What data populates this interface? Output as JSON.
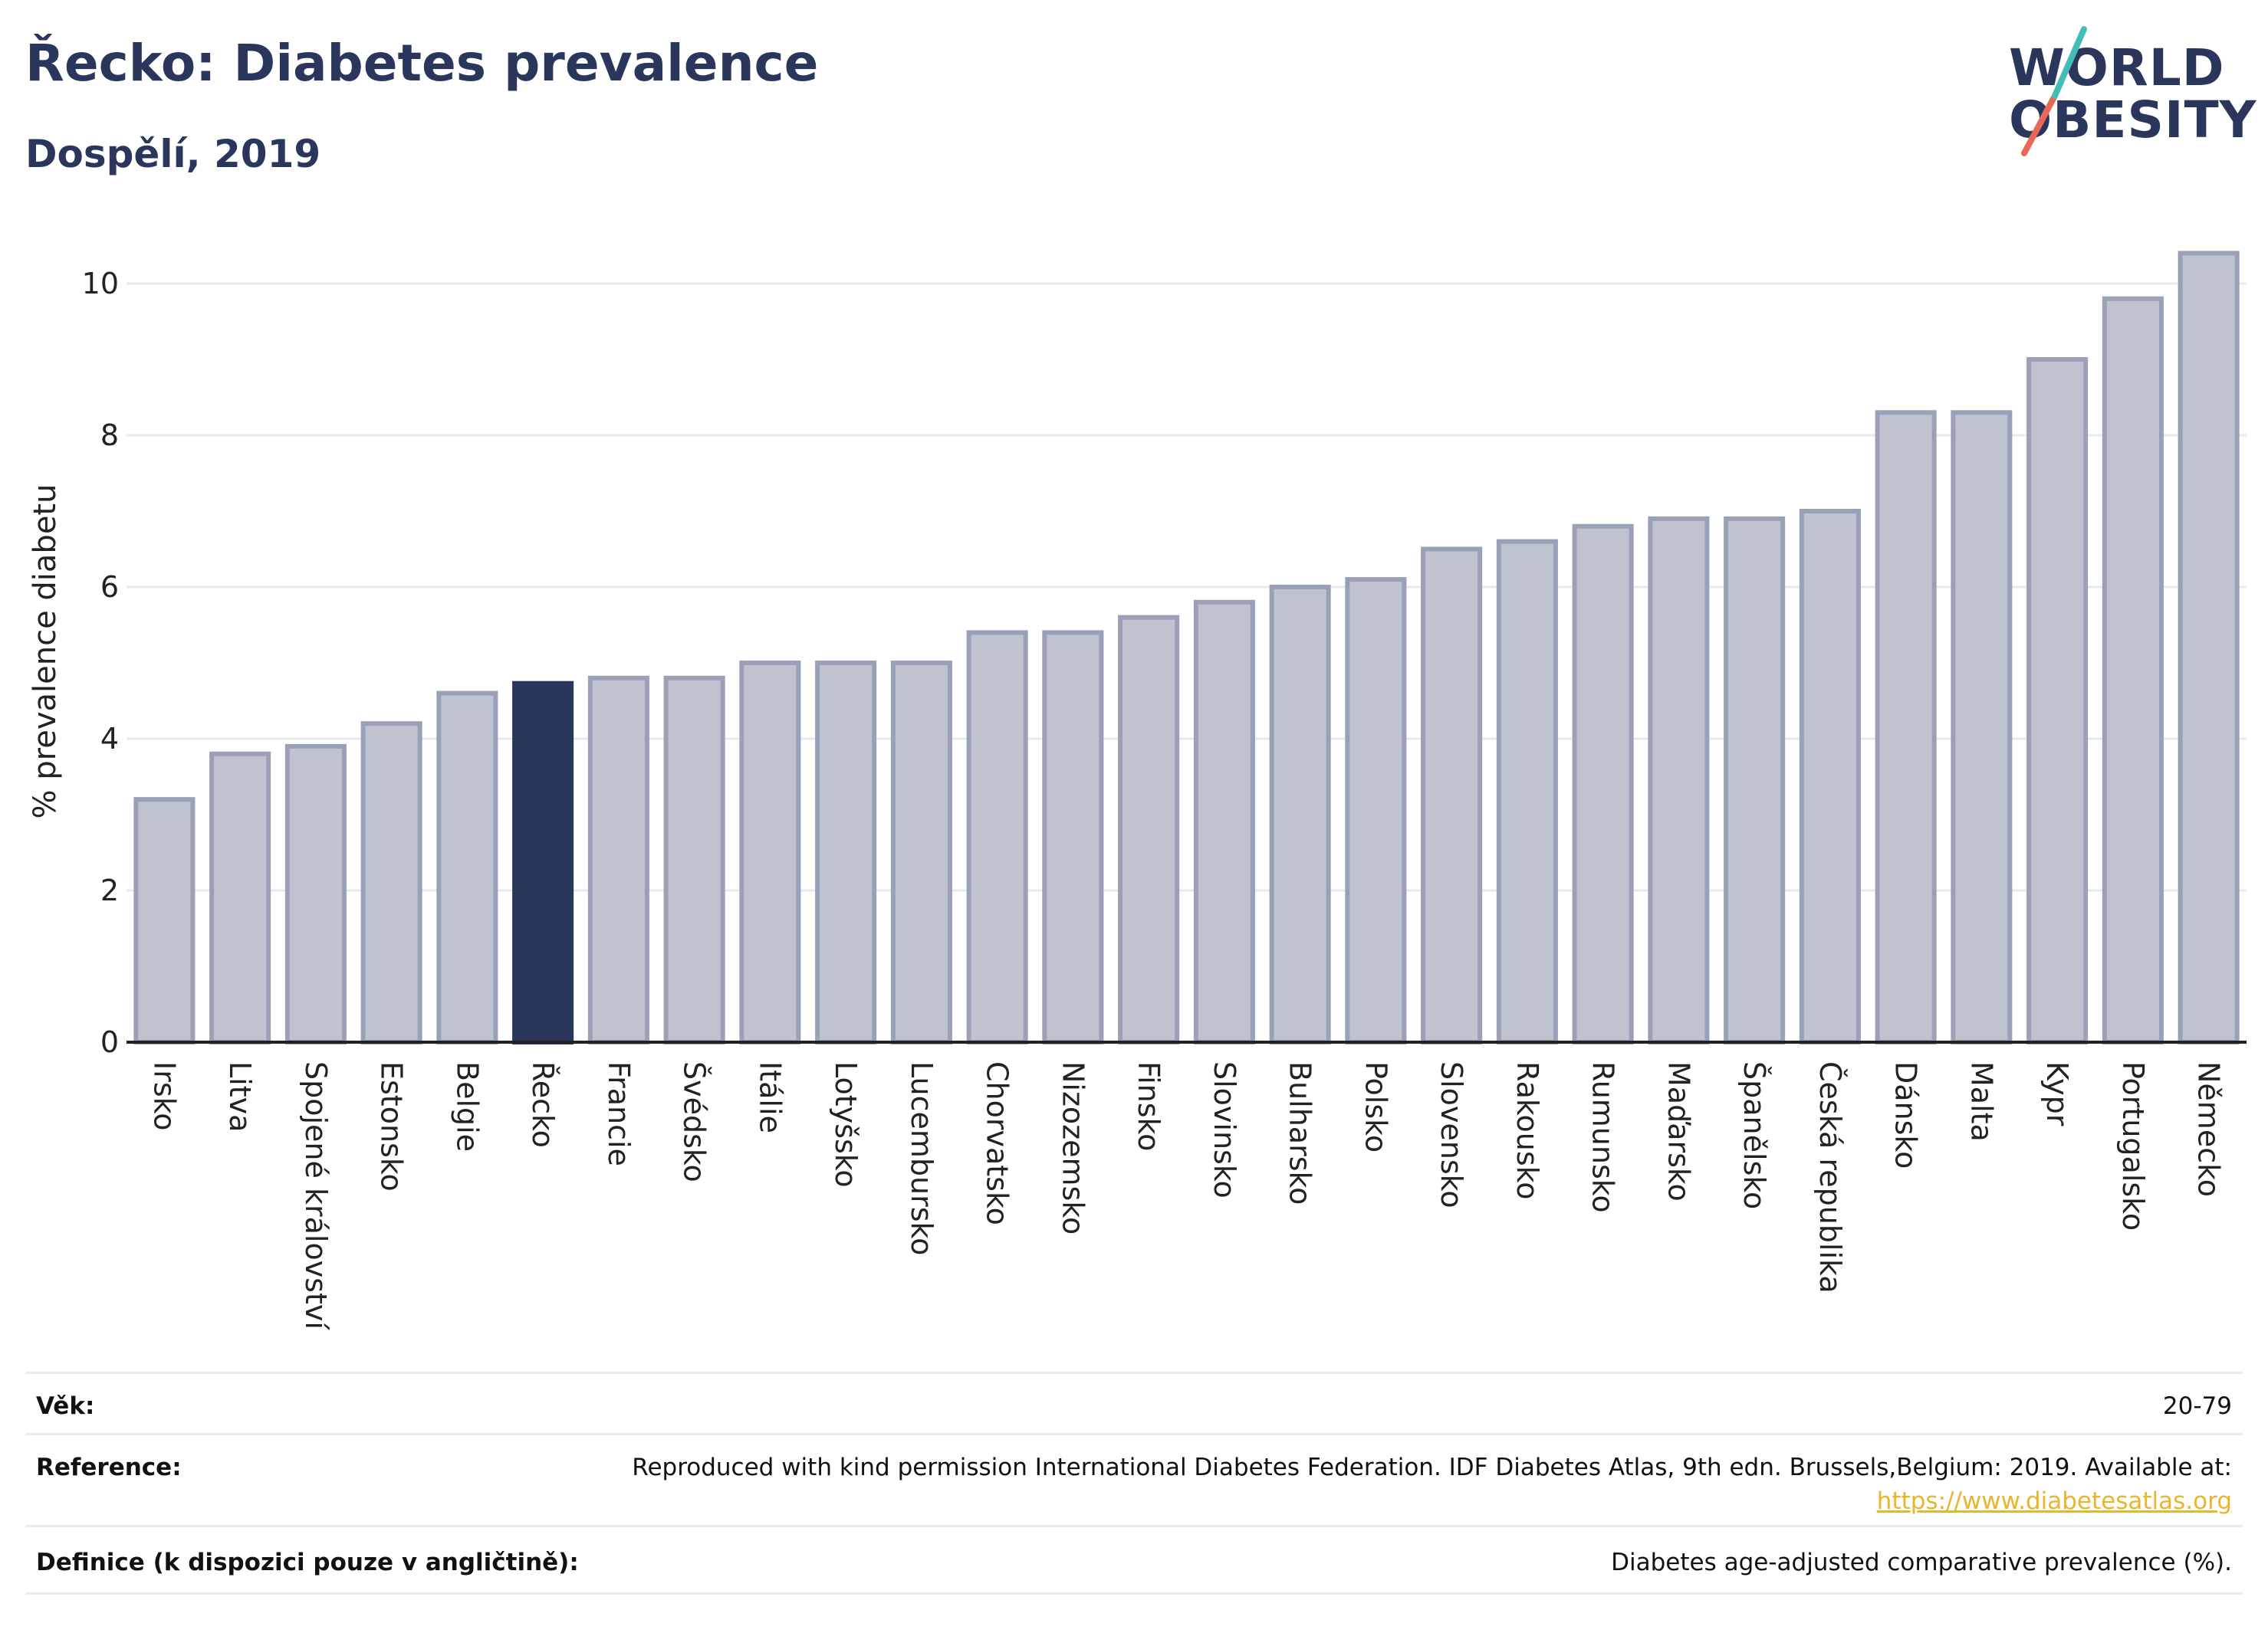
{
  "header": {
    "title": "Řecko: Diabetes prevalence",
    "subtitle": "Dospělí, 2019"
  },
  "logo": {
    "line1": "WORLD",
    "line2": "OBESITY",
    "accent_colors": [
      "#e86a56",
      "#42bdb8"
    ]
  },
  "chart_data": {
    "type": "bar",
    "ylabel": "% prevalence diabetu",
    "ylim": [
      0,
      10.5
    ],
    "yticks": [
      "0",
      "2",
      "4",
      "6",
      "8",
      "10"
    ],
    "ytick_values": [
      0,
      2,
      4,
      6,
      8,
      10
    ],
    "grid": true,
    "highlight": "Řecko",
    "bar_color": "#bfc3d0",
    "bar_border_color": "#9aa0b8",
    "highlight_color": "#2b365d",
    "categories": [
      "Irsko",
      "Litva",
      "Spojené království",
      "Estonsko",
      "Belgie",
      "Řecko",
      "Francie",
      "Švédsko",
      "Itálie",
      "Lotyšsko",
      "Lucembursko",
      "Chorvatsko",
      "Nizozemsko",
      "Finsko",
      "Slovinsko",
      "Bulharsko",
      "Polsko",
      "Slovensko",
      "Rakousko",
      "Rumunsko",
      "Maďarsko",
      "Španělsko",
      "Česká republika",
      "Dánsko",
      "Malta",
      "Kypr",
      "Portugalsko",
      "Německo"
    ],
    "values": [
      3.2,
      3.8,
      3.9,
      4.2,
      4.6,
      4.73,
      4.8,
      4.8,
      5.0,
      5.0,
      5.0,
      5.4,
      5.4,
      5.6,
      5.8,
      6.0,
      6.1,
      6.5,
      6.6,
      6.8,
      6.9,
      6.9,
      7.0,
      8.3,
      8.3,
      9.0,
      9.8,
      10.4
    ]
  },
  "info": {
    "age_label": "Věk:",
    "age_value": "20-79",
    "reference_label": "Reference:",
    "reference_text": "Reproduced with kind permission International Diabetes Federation. IDF Diabetes Atlas, 9th edn. Brussels,Belgium: 2019. Available at:",
    "reference_link": "https://www.diabetesatlas.org",
    "definition_label": "Definice (k dispozici pouze v angličtině):",
    "definition_value": "Diabetes age-adjusted comparative prevalence (%)."
  }
}
